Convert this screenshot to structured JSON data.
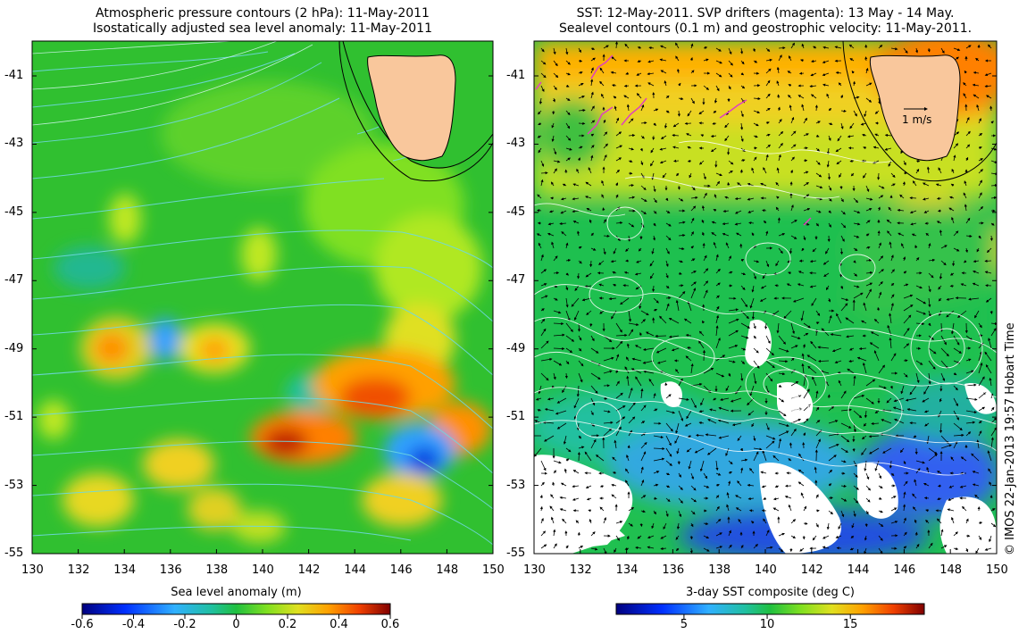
{
  "left_panel": {
    "title_line1": "Atmospheric pressure contours (2 hPa): 11-May-2011",
    "title_line2": "Isostatically adjusted sea level anomaly: 11-May-2011",
    "colorbar_label": "Sea level anomaly (m)",
    "colorbar_ticks": [
      "-0.6",
      "-0.4",
      "-0.2",
      "0",
      "0.2",
      "0.4",
      "0.6"
    ]
  },
  "right_panel": {
    "title_line1": "SST: 12-May-2011. SVP drifters (magenta): 13 May - 14 May.",
    "title_line2": "Sealevel contours (0.1 m) and geostrophic velocity: 11-May-2011.",
    "colorbar_label": "3-day SST composite (deg C)",
    "colorbar_ticks": [
      "5",
      "10",
      "15"
    ],
    "scale_label": "1 m/s"
  },
  "axes": {
    "lon_ticks": [
      "130",
      "132",
      "134",
      "136",
      "138",
      "140",
      "142",
      "144",
      "146",
      "148",
      "150"
    ],
    "lat_ticks": [
      "-41",
      "-43",
      "-45",
      "-47",
      "-49",
      "-51",
      "-53",
      "-55"
    ]
  },
  "credit": "© IMOS 22-Jan-2013 19:57 Hobart Time",
  "colors": {
    "land": "#f9c79c",
    "pressure_contour": "#6fd8e0",
    "drifter": "#e040c0"
  }
}
